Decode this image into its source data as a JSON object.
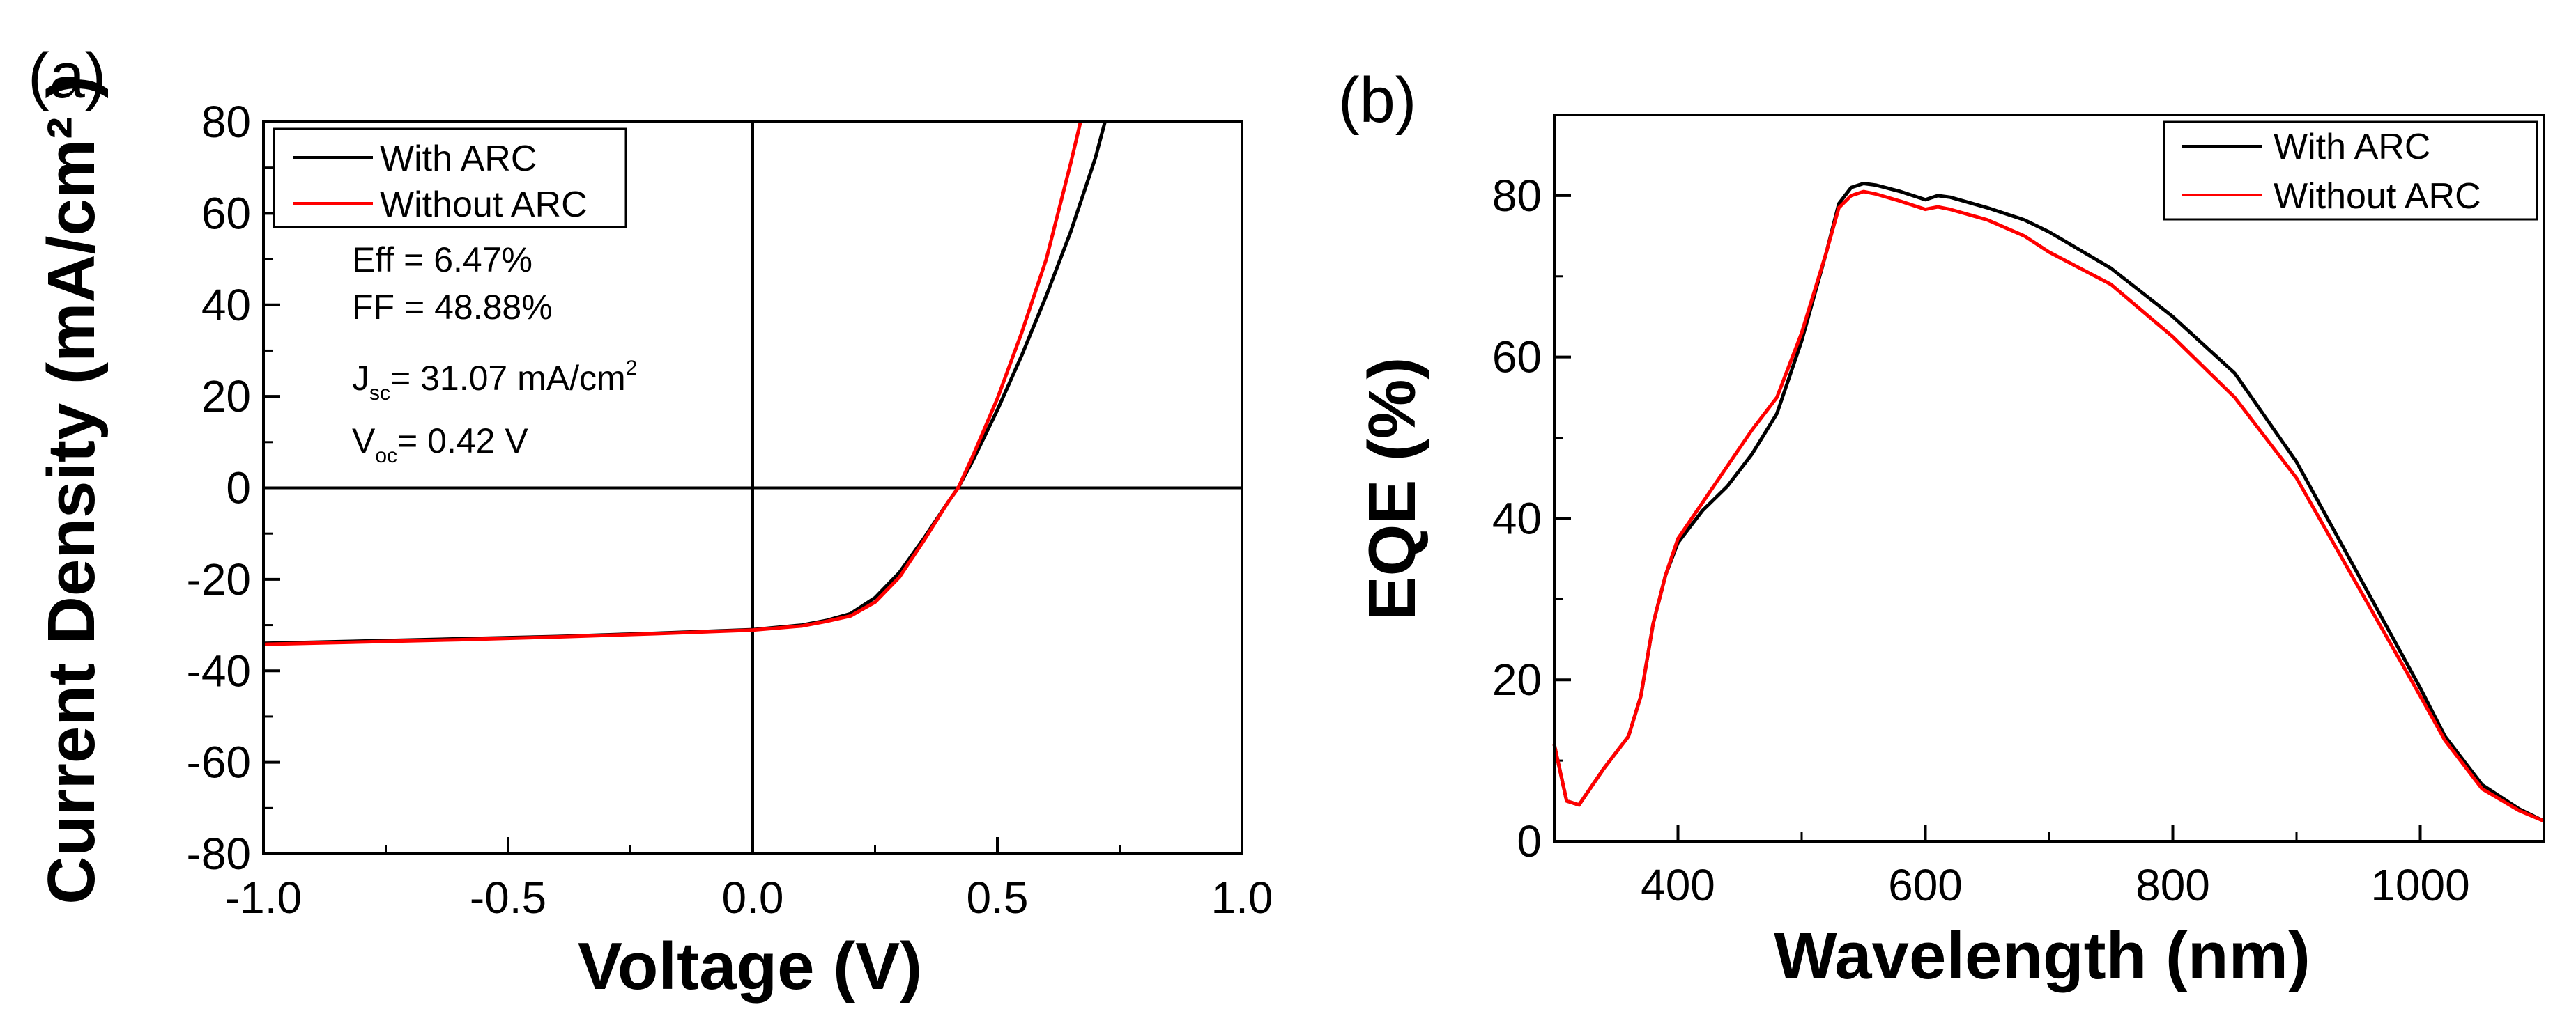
{
  "chart_data": [
    {
      "type": "line",
      "panel_label": "(a)",
      "title": "",
      "xlabel": "Voltage (V)",
      "ylabel": "Current Density (mA/cm² )",
      "xlim": [
        -1.0,
        1.0
      ],
      "ylim": [
        -80,
        80
      ],
      "x_ticks": [
        -1.0,
        -0.5,
        0.0,
        0.5,
        1.0
      ],
      "x_tick_labels": [
        "-1.0",
        "-0.5",
        "0.0",
        "0.5",
        "1.0"
      ],
      "y_ticks": [
        -80,
        -60,
        -40,
        -20,
        0,
        20,
        40,
        60,
        80
      ],
      "y_tick_labels": [
        "-80",
        "-60",
        "-40",
        "-20",
        "0",
        "20",
        "40",
        "60",
        "80"
      ],
      "zero_lines": true,
      "legend_position": "top-left",
      "series": [
        {
          "name": "With ARC",
          "color": "#000000",
          "x": [
            -1.0,
            -0.8,
            -0.6,
            -0.4,
            -0.2,
            0.0,
            0.1,
            0.15,
            0.2,
            0.25,
            0.3,
            0.35,
            0.4,
            0.42,
            0.45,
            0.5,
            0.55,
            0.6,
            0.65,
            0.7,
            0.72
          ],
          "y": [
            -34.0,
            -33.5,
            -33.0,
            -32.5,
            -31.8,
            -31.0,
            -30.0,
            -29.0,
            -27.5,
            -24.0,
            -18.5,
            -11.0,
            -3.0,
            0.0,
            6.0,
            17.0,
            29.0,
            42.0,
            56.0,
            72.0,
            80.0
          ]
        },
        {
          "name": "Without ARC",
          "color": "#ff0000",
          "x": [
            -1.0,
            -0.8,
            -0.6,
            -0.4,
            -0.2,
            0.0,
            0.1,
            0.15,
            0.2,
            0.25,
            0.3,
            0.35,
            0.4,
            0.42,
            0.45,
            0.5,
            0.55,
            0.6,
            0.65,
            0.67
          ],
          "y": [
            -34.2,
            -33.7,
            -33.2,
            -32.6,
            -31.9,
            -31.1,
            -30.2,
            -29.2,
            -28.0,
            -25.0,
            -19.5,
            -11.5,
            -3.0,
            0.0,
            7.0,
            19.5,
            34.0,
            50.0,
            71.0,
            80.0
          ]
        }
      ],
      "annotations": {
        "eff": "Eff = 6.47%",
        "ff": "FF = 48.88%",
        "jsc_symbol": "J",
        "jsc_sub": "sc",
        "jsc_value": "= 31.07 mA/cm",
        "jsc_sup": "2",
        "voc_symbol": "V",
        "voc_sub": "oc",
        "voc_value": "= 0.42 V"
      }
    },
    {
      "type": "line",
      "panel_label": "(b)",
      "title": "",
      "xlabel": "Wavelength (nm)",
      "ylabel": "EQE (%)",
      "xlim": [
        300,
        1100
      ],
      "ylim": [
        0,
        90
      ],
      "x_ticks": [
        400,
        600,
        800,
        1000
      ],
      "x_tick_labels": [
        "400",
        "600",
        "800",
        "1000"
      ],
      "y_ticks": [
        0,
        20,
        40,
        60,
        80
      ],
      "y_tick_labels": [
        "0",
        "20",
        "40",
        "60",
        "80"
      ],
      "legend_position": "top-right",
      "series": [
        {
          "name": "With ARC",
          "color": "#000000",
          "x": [
            300,
            310,
            320,
            340,
            360,
            370,
            380,
            390,
            400,
            420,
            440,
            460,
            480,
            500,
            520,
            530,
            540,
            550,
            560,
            580,
            600,
            610,
            620,
            650,
            680,
            700,
            750,
            800,
            850,
            900,
            950,
            1000,
            1020,
            1050,
            1080,
            1100
          ],
          "y": [
            12,
            5,
            4.5,
            9,
            13,
            18,
            27,
            33,
            37,
            41,
            44,
            48,
            53,
            62,
            73,
            79,
            81,
            81.5,
            81.3,
            80.5,
            79.5,
            80,
            79.8,
            78.5,
            77,
            75.5,
            71,
            65,
            58,
            47,
            33,
            19,
            13,
            7,
            4,
            2.5
          ]
        },
        {
          "name": "Without ARC",
          "color": "#ff0000",
          "x": [
            300,
            310,
            320,
            340,
            360,
            370,
            380,
            390,
            400,
            420,
            440,
            460,
            480,
            500,
            520,
            530,
            540,
            550,
            560,
            580,
            600,
            610,
            620,
            650,
            680,
            700,
            750,
            800,
            850,
            900,
            950,
            1000,
            1020,
            1050,
            1080,
            1100
          ],
          "y": [
            12,
            5,
            4.5,
            9,
            13,
            18,
            27,
            33,
            37.5,
            42,
            46.5,
            51,
            55,
            63,
            73,
            78.5,
            80,
            80.5,
            80.2,
            79.3,
            78.3,
            78.6,
            78.3,
            77,
            75,
            73,
            69,
            62.5,
            55,
            45,
            31.5,
            18,
            12.5,
            6.5,
            3.8,
            2.5
          ]
        }
      ]
    }
  ]
}
